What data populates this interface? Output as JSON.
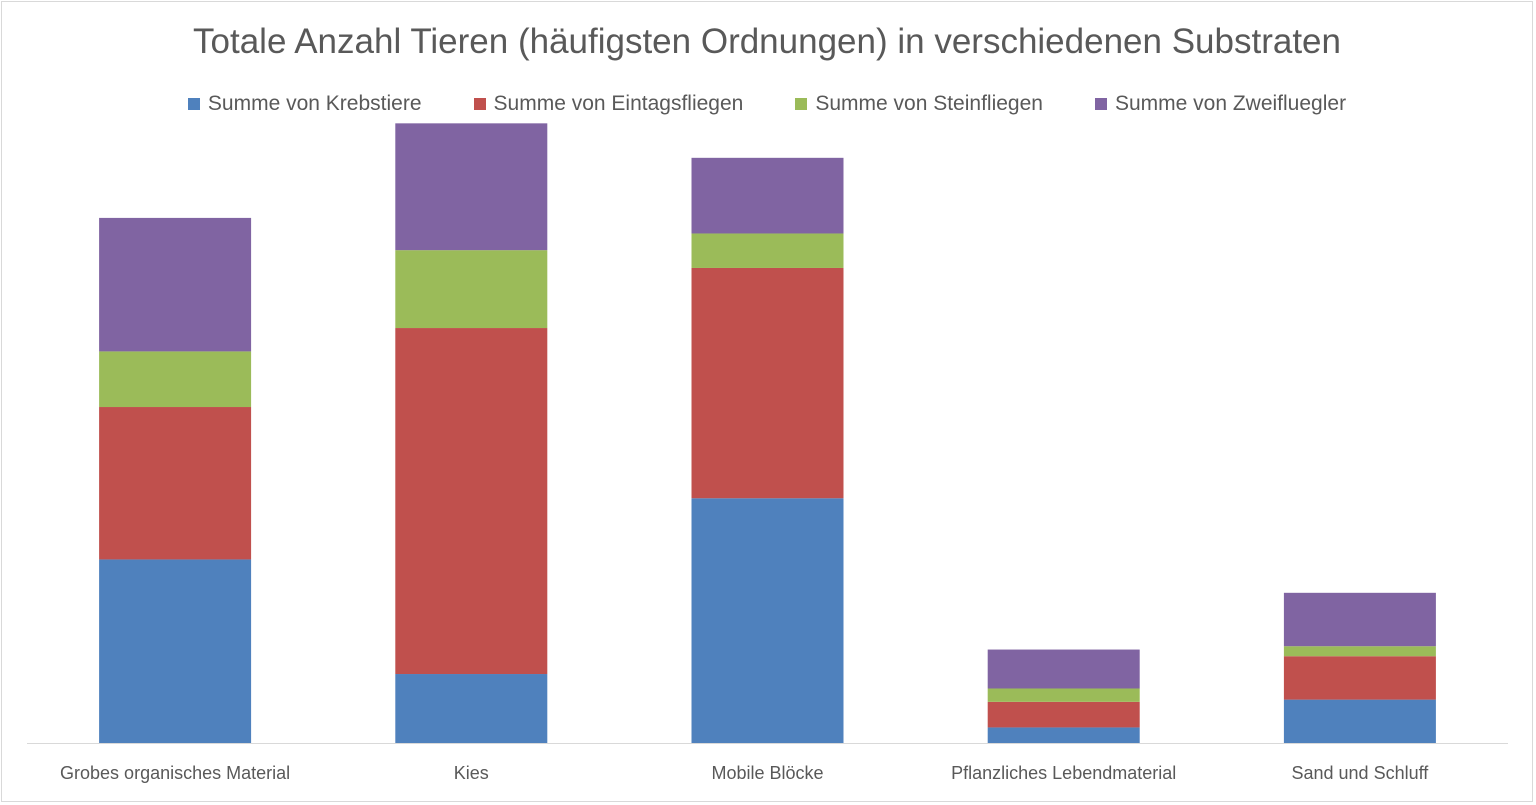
{
  "chart_data": {
    "type": "bar",
    "stacked": true,
    "title": "Totale Anzahl Tieren (häufigsten Ordnungen) in verschiedenen Substraten",
    "legend_position": "top",
    "grid": false,
    "categories": [
      "Grobes organisches Material",
      "Kies",
      "Mobile Blöcke",
      "Pflanzliches Lebendmaterial",
      "Sand und Schluff"
    ],
    "ylim": [
      0,
      560
    ],
    "series": [
      {
        "name": "Summe von Krebstiere",
        "color": "#4F81BD",
        "values": [
          165,
          62,
          220,
          14,
          39
        ]
      },
      {
        "name": "Summe von Eintagsfliegen",
        "color": "#C0504D",
        "values": [
          137,
          311,
          207,
          23,
          39
        ]
      },
      {
        "name": "Summe von Steinfliegen",
        "color": "#9BBB59",
        "values": [
          50,
          70,
          31,
          12,
          9
        ]
      },
      {
        "name": "Summe von Zweifluegler",
        "color": "#8064A2",
        "values": [
          120,
          114,
          68,
          35,
          48
        ]
      }
    ]
  }
}
